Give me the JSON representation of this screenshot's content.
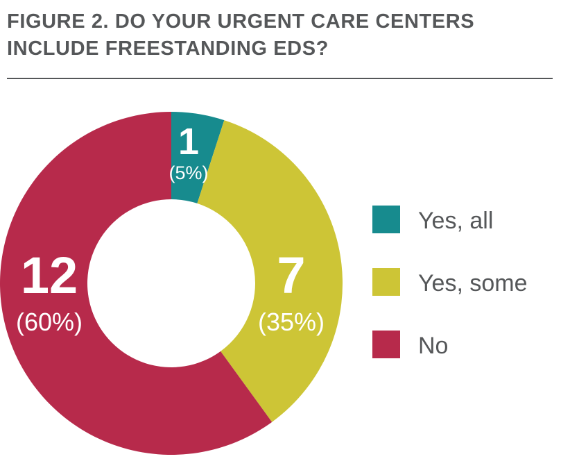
{
  "title_lines": [
    "FIGURE 2. DO YOUR URGENT CARE CENTERS",
    "INCLUDE FREESTANDING EDs?"
  ],
  "chart_data": {
    "type": "pie",
    "donut": true,
    "categories": [
      "Yes, all",
      "Yes, some",
      "No"
    ],
    "values": [
      1,
      7,
      12
    ],
    "percent_labels": [
      "(5%)",
      "(35%)",
      "(60%)"
    ],
    "value_labels": [
      "1",
      "7",
      "12"
    ],
    "colors": [
      "#178b8e",
      "#cdc536",
      "#b72a4b"
    ],
    "legend_position": "right",
    "xlabel": "",
    "ylabel": ""
  }
}
